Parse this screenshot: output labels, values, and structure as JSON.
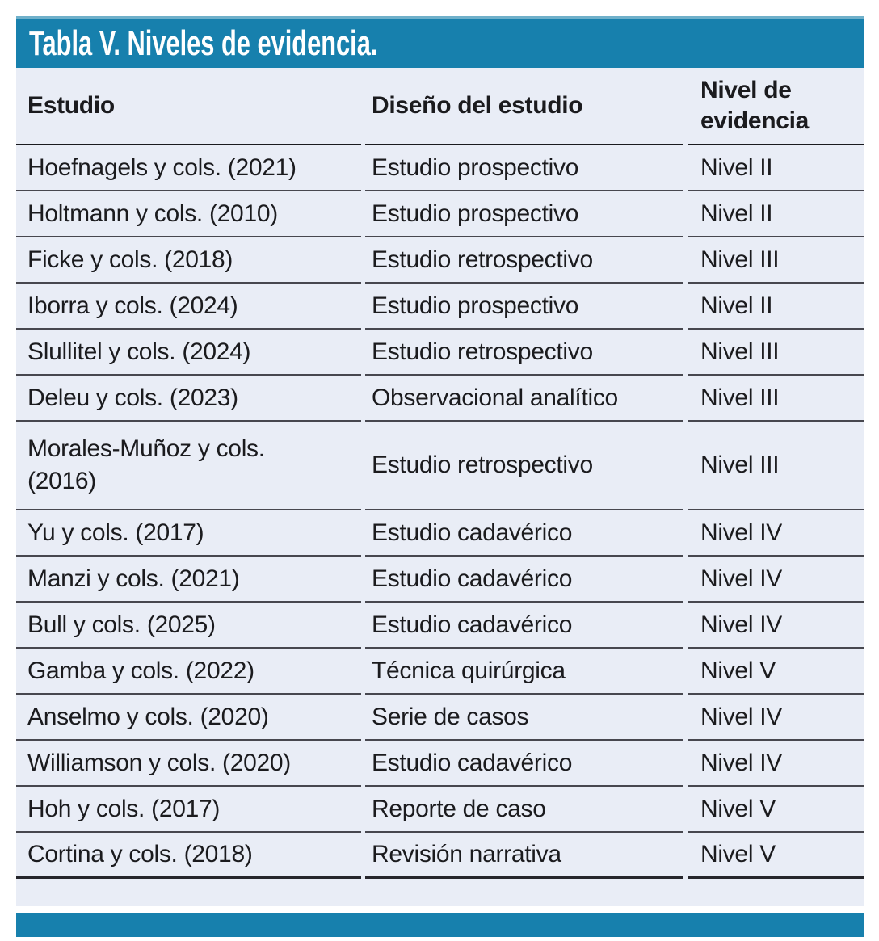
{
  "title": "Tabla V. Niveles de evidencia.",
  "colors": {
    "header_band": "#1780ad",
    "header_band_top_edge": "#6fb0ca",
    "table_background": "#e9edf6",
    "row_rule": "#47474f",
    "header_rule": "#1a1a1e",
    "text": "#1b1b1e",
    "title_text": "#ffffff"
  },
  "table": {
    "columns": [
      "Estudio",
      "Diseño del estudio",
      "Nivel de evidencia"
    ],
    "rows": [
      {
        "estudio": "Hoefnagels y cols. (2021)",
        "diseno": "Estudio prospectivo",
        "nivel": "Nivel II"
      },
      {
        "estudio": "Holtmann y cols. (2010)",
        "diseno": "Estudio prospectivo",
        "nivel": "Nivel II"
      },
      {
        "estudio": "Ficke y cols. (2018)",
        "diseno": "Estudio retrospectivo",
        "nivel": "Nivel III"
      },
      {
        "estudio": "Iborra y cols. (2024)",
        "diseno": "Estudio prospectivo",
        "nivel": "Nivel II"
      },
      {
        "estudio": "Slullitel y cols. (2024)",
        "diseno": "Estudio retrospectivo",
        "nivel": "Nivel III"
      },
      {
        "estudio": "Deleu y cols. (2023)",
        "diseno": "Observacional analítico",
        "nivel": "Nivel III"
      },
      {
        "estudio": "Morales-Muñoz y cols.\n(2016)",
        "diseno": "Estudio retrospectivo",
        "nivel": "Nivel III"
      },
      {
        "estudio": "Yu y cols. (2017)",
        "diseno": "Estudio cadavérico",
        "nivel": "Nivel IV"
      },
      {
        "estudio": "Manzi y cols. (2021)",
        "diseno": "Estudio cadavérico",
        "nivel": "Nivel IV"
      },
      {
        "estudio": "Bull y cols. (2025)",
        "diseno": "Estudio cadavérico",
        "nivel": "Nivel IV"
      },
      {
        "estudio": "Gamba y cols. (2022)",
        "diseno": "Técnica quirúrgica",
        "nivel": "Nivel V"
      },
      {
        "estudio": "Anselmo y cols. (2020)",
        "diseno": "Serie de casos",
        "nivel": "Nivel IV"
      },
      {
        "estudio": "Williamson y cols. (2020)",
        "diseno": "Estudio cadavérico",
        "nivel": "Nivel IV"
      },
      {
        "estudio": "Hoh y cols. (2017)",
        "diseno": "Reporte de caso",
        "nivel": "Nivel V"
      },
      {
        "estudio": "Cortina y cols. (2018)",
        "diseno": "Revisión narrativa",
        "nivel": "Nivel V"
      }
    ]
  }
}
